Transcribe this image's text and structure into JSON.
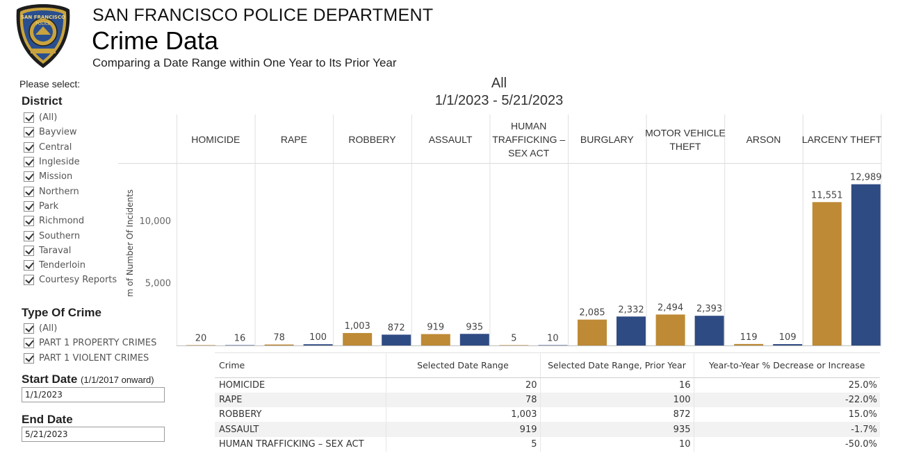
{
  "header": {
    "org": "SAN FRANCISCO POLICE DEPARTMENT",
    "title": "Crime Data",
    "subtitle": "Comparing a Date Range within One Year to Its Prior Year",
    "badge_top": "SAN FRANCISCO",
    "badge_mid": "POLICE"
  },
  "filters": {
    "please_select": "Please select:",
    "district": {
      "label": "District",
      "items": [
        "(All)",
        "Bayview",
        "Central",
        "Ingleside",
        "Mission",
        "Northern",
        "Park",
        "Richmond",
        "Southern",
        "Taraval",
        "Tenderloin",
        "Courtesy Reports"
      ]
    },
    "crime_type": {
      "label": "Type Of Crime",
      "items": [
        "(All)",
        "PART 1 PROPERTY CRIMES",
        "PART 1 VIOLENT CRIMES"
      ]
    },
    "start_date": {
      "label": "Start Date",
      "note": "(1/1/2017 onward)",
      "value": "1/1/2023"
    },
    "end_date": {
      "label": "End Date",
      "value": "5/21/2023"
    }
  },
  "chart_data": {
    "type": "bar",
    "title": "All",
    "subtitle": "1/1/2023 - 5/21/2023",
    "ylabel": "m of Number Of Incidents",
    "ylim": [
      0,
      14700
    ],
    "yticks": [
      5000,
      10000
    ],
    "ytick_labels": [
      "5,000",
      "10,000"
    ],
    "categories": [
      [
        "HOMICIDE"
      ],
      [
        "RAPE"
      ],
      [
        "ROBBERY"
      ],
      [
        "ASSAULT"
      ],
      [
        "HUMAN",
        "TRAFFICKING –",
        "SEX ACT"
      ],
      [
        "BURGLARY"
      ],
      [
        "MOTOR VEHICLE",
        "THEFT"
      ],
      [
        "ARSON"
      ],
      [
        "LARCENY THEFT"
      ]
    ],
    "series": [
      {
        "name": "Selected Date Range",
        "color": "#BE8A35",
        "values": [
          20,
          78,
          1003,
          919,
          5,
          2085,
          2494,
          119,
          11551
        ],
        "labels": [
          "20",
          "78",
          "1,003",
          "919",
          "5",
          "2,085",
          "2,494",
          "119",
          "11,551"
        ]
      },
      {
        "name": "Selected Date Range, Prior Year",
        "color": "#2F4B84",
        "values": [
          16,
          100,
          872,
          935,
          10,
          2332,
          2393,
          109,
          12989
        ],
        "labels": [
          "16",
          "100",
          "872",
          "935",
          "10",
          "2,332",
          "2,393",
          "109",
          "12,989"
        ]
      }
    ]
  },
  "table": {
    "headers": [
      "Crime",
      "Selected Date Range",
      "Selected Date Range, Prior Year",
      "Year-to-Year % Decrease or Increase"
    ],
    "rows": [
      [
        "HOMICIDE",
        "20",
        "16",
        "25.0%"
      ],
      [
        "RAPE",
        "78",
        "100",
        "-22.0%"
      ],
      [
        "ROBBERY",
        "1,003",
        "872",
        "15.0%"
      ],
      [
        "ASSAULT",
        "919",
        "935",
        "-1.7%"
      ],
      [
        "HUMAN TRAFFICKING – SEX ACT",
        "5",
        "10",
        "-50.0%"
      ]
    ]
  }
}
